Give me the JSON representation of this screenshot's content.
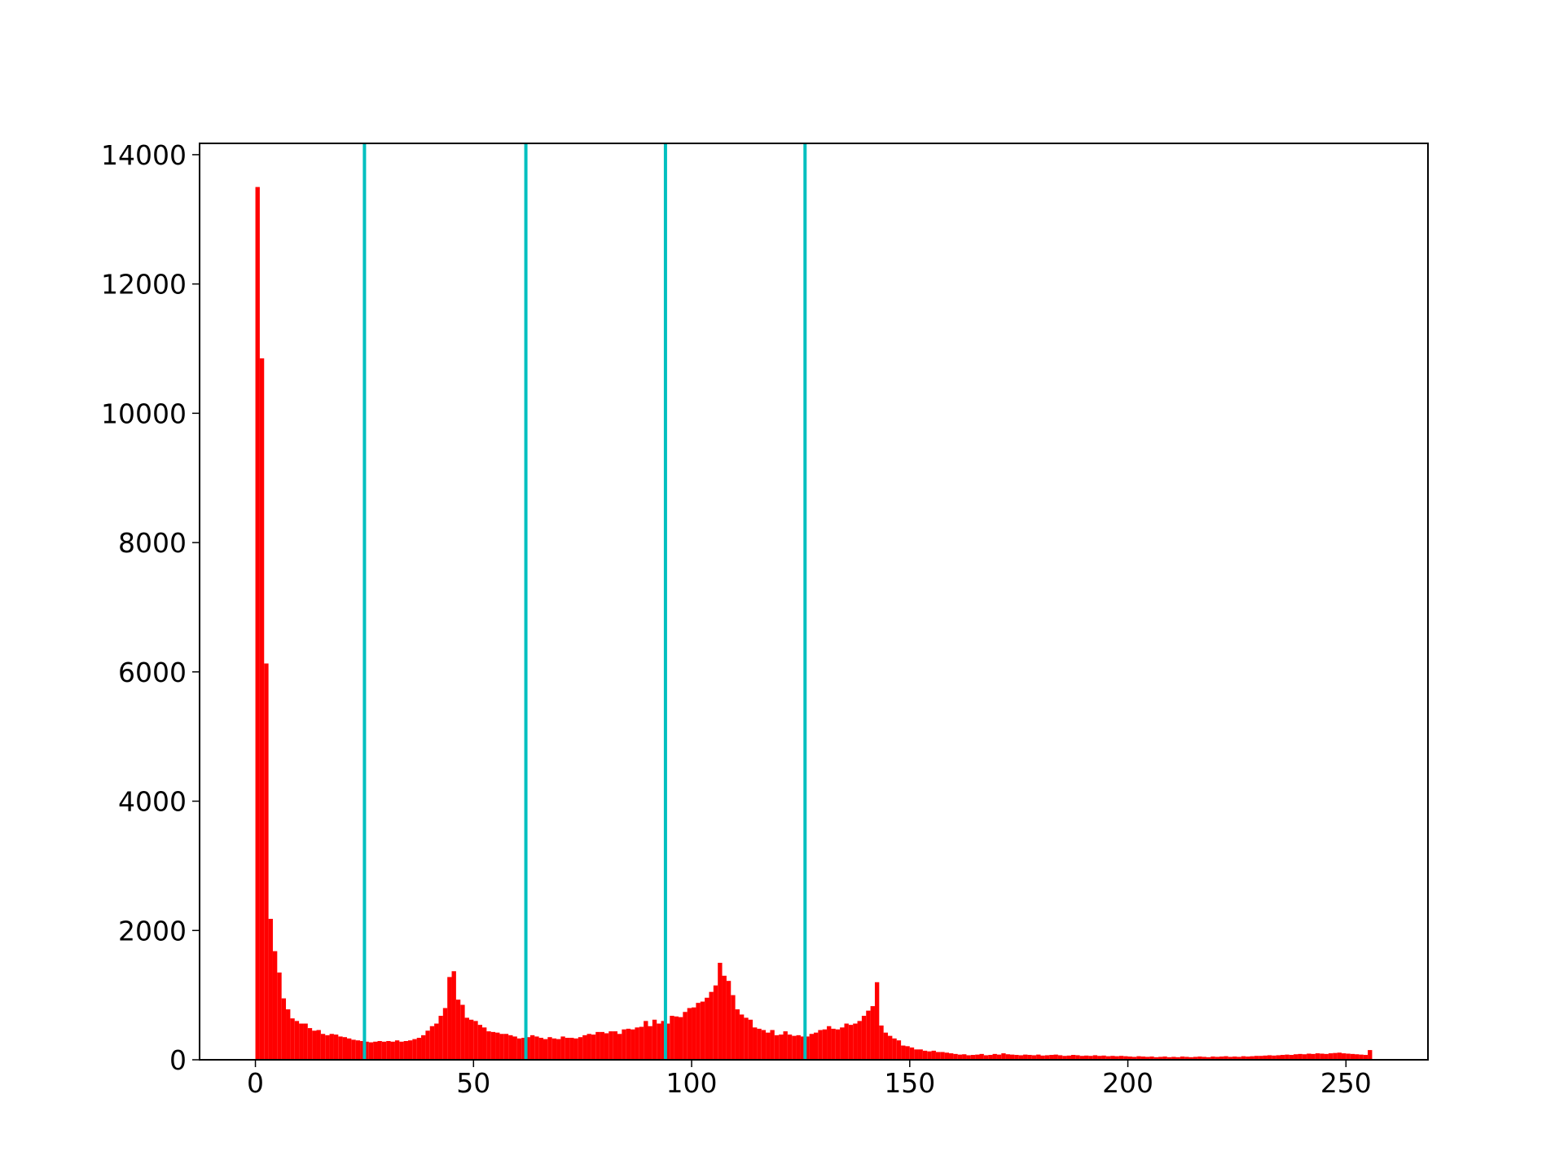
{
  "chart_data": {
    "type": "histogram",
    "bins": [
      0,
      1,
      2,
      3,
      4,
      5,
      6,
      7,
      8,
      9,
      10,
      11,
      12,
      13,
      14,
      15,
      16,
      17,
      18,
      19,
      20,
      21,
      22,
      23,
      24,
      25,
      26,
      27,
      28,
      29,
      30,
      31,
      32,
      33,
      34,
      35,
      36,
      37,
      38,
      39,
      40,
      41,
      42,
      43,
      44,
      45,
      46,
      47,
      48,
      49,
      50,
      51,
      52,
      53,
      54,
      55,
      56,
      57,
      58,
      59,
      60,
      61,
      62,
      63,
      64,
      65,
      66,
      67,
      68,
      69,
      70,
      71,
      72,
      73,
      74,
      75,
      76,
      77,
      78,
      79,
      80,
      81,
      82,
      83,
      84,
      85,
      86,
      87,
      88,
      89,
      90,
      91,
      92,
      93,
      94,
      95,
      96,
      97,
      98,
      99,
      100,
      101,
      102,
      103,
      104,
      105,
      106,
      107,
      108,
      109,
      110,
      111,
      112,
      113,
      114,
      115,
      116,
      117,
      118,
      119,
      120,
      121,
      122,
      123,
      124,
      125,
      126,
      127,
      128,
      129,
      130,
      131,
      132,
      133,
      134,
      135,
      136,
      137,
      138,
      139,
      140,
      141,
      142,
      143,
      144,
      145,
      146,
      147,
      148,
      149,
      150,
      151,
      152,
      153,
      154,
      155,
      156,
      157,
      158,
      159,
      160,
      161,
      162,
      163,
      164,
      165,
      166,
      167,
      168,
      169,
      170,
      171,
      172,
      173,
      174,
      175,
      176,
      177,
      178,
      179,
      180,
      181,
      182,
      183,
      184,
      185,
      186,
      187,
      188,
      189,
      190,
      191,
      192,
      193,
      194,
      195,
      196,
      197,
      198,
      199,
      200,
      201,
      202,
      203,
      204,
      205,
      206,
      207,
      208,
      209,
      210,
      211,
      212,
      213,
      214,
      215,
      216,
      217,
      218,
      219,
      220,
      221,
      222,
      223,
      224,
      225,
      226,
      227,
      228,
      229,
      230,
      231,
      232,
      233,
      234,
      235,
      236,
      237,
      238,
      239,
      240,
      241,
      242,
      243,
      244,
      245,
      246,
      247,
      248,
      249,
      250,
      251,
      252,
      253,
      254,
      255,
      256
    ],
    "counts": [
      13500,
      10850,
      6130,
      2180,
      1680,
      1350,
      950,
      780,
      640,
      600,
      560,
      560,
      490,
      450,
      460,
      400,
      380,
      400,
      390,
      360,
      350,
      330,
      310,
      300,
      290,
      280,
      270,
      280,
      290,
      280,
      290,
      280,
      300,
      280,
      290,
      300,
      320,
      340,
      380,
      450,
      520,
      560,
      680,
      800,
      1280,
      1370,
      930,
      850,
      650,
      620,
      600,
      540,
      500,
      440,
      430,
      420,
      400,
      400,
      380,
      360,
      330,
      340,
      350,
      380,
      360,
      340,
      320,
      350,
      330,
      320,
      360,
      340,
      340,
      330,
      350,
      380,
      400,
      390,
      430,
      430,
      410,
      440,
      440,
      400,
      470,
      480,
      470,
      500,
      510,
      600,
      520,
      620,
      560,
      600,
      560,
      680,
      670,
      660,
      740,
      800,
      810,
      880,
      900,
      960,
      1050,
      1150,
      1500,
      1300,
      1220,
      1000,
      780,
      700,
      650,
      620,
      500,
      480,
      460,
      420,
      460,
      380,
      390,
      440,
      390,
      370,
      380,
      360,
      360,
      400,
      420,
      460,
      470,
      520,
      480,
      470,
      500,
      560,
      540,
      560,
      600,
      680,
      760,
      830,
      1200,
      530,
      420,
      370,
      330,
      300,
      220,
      210,
      190,
      160,
      160,
      140,
      130,
      140,
      120,
      120,
      110,
      100,
      90,
      80,
      85,
      70,
      75,
      80,
      90,
      70,
      75,
      90,
      80,
      100,
      85,
      80,
      75,
      70,
      80,
      75,
      70,
      80,
      65,
      70,
      75,
      80,
      70,
      60,
      65,
      75,
      70,
      60,
      65,
      60,
      70,
      60,
      65,
      55,
      60,
      55,
      60,
      55,
      50,
      45,
      55,
      50,
      45,
      50,
      40,
      45,
      50,
      40,
      45,
      40,
      50,
      45,
      40,
      45,
      50,
      45,
      40,
      50,
      45,
      50,
      55,
      45,
      50,
      45,
      55,
      50,
      55,
      60,
      60,
      65,
      70,
      65,
      70,
      75,
      80,
      75,
      85,
      90,
      85,
      95,
      90,
      100,
      95,
      90,
      100,
      105,
      110,
      100,
      95,
      90,
      85,
      80,
      75,
      150
    ],
    "color": "#ff0000",
    "vlines": [
      25,
      62,
      94,
      126
    ],
    "vline_color": "#00bfbf",
    "xlim": [
      -12.8,
      268.8
    ],
    "xticks": [
      0,
      50,
      100,
      150,
      200,
      250
    ],
    "ylim": [
      0,
      14175
    ],
    "yticks": [
      0,
      2000,
      4000,
      6000,
      8000,
      10000,
      12000,
      14000
    ]
  }
}
